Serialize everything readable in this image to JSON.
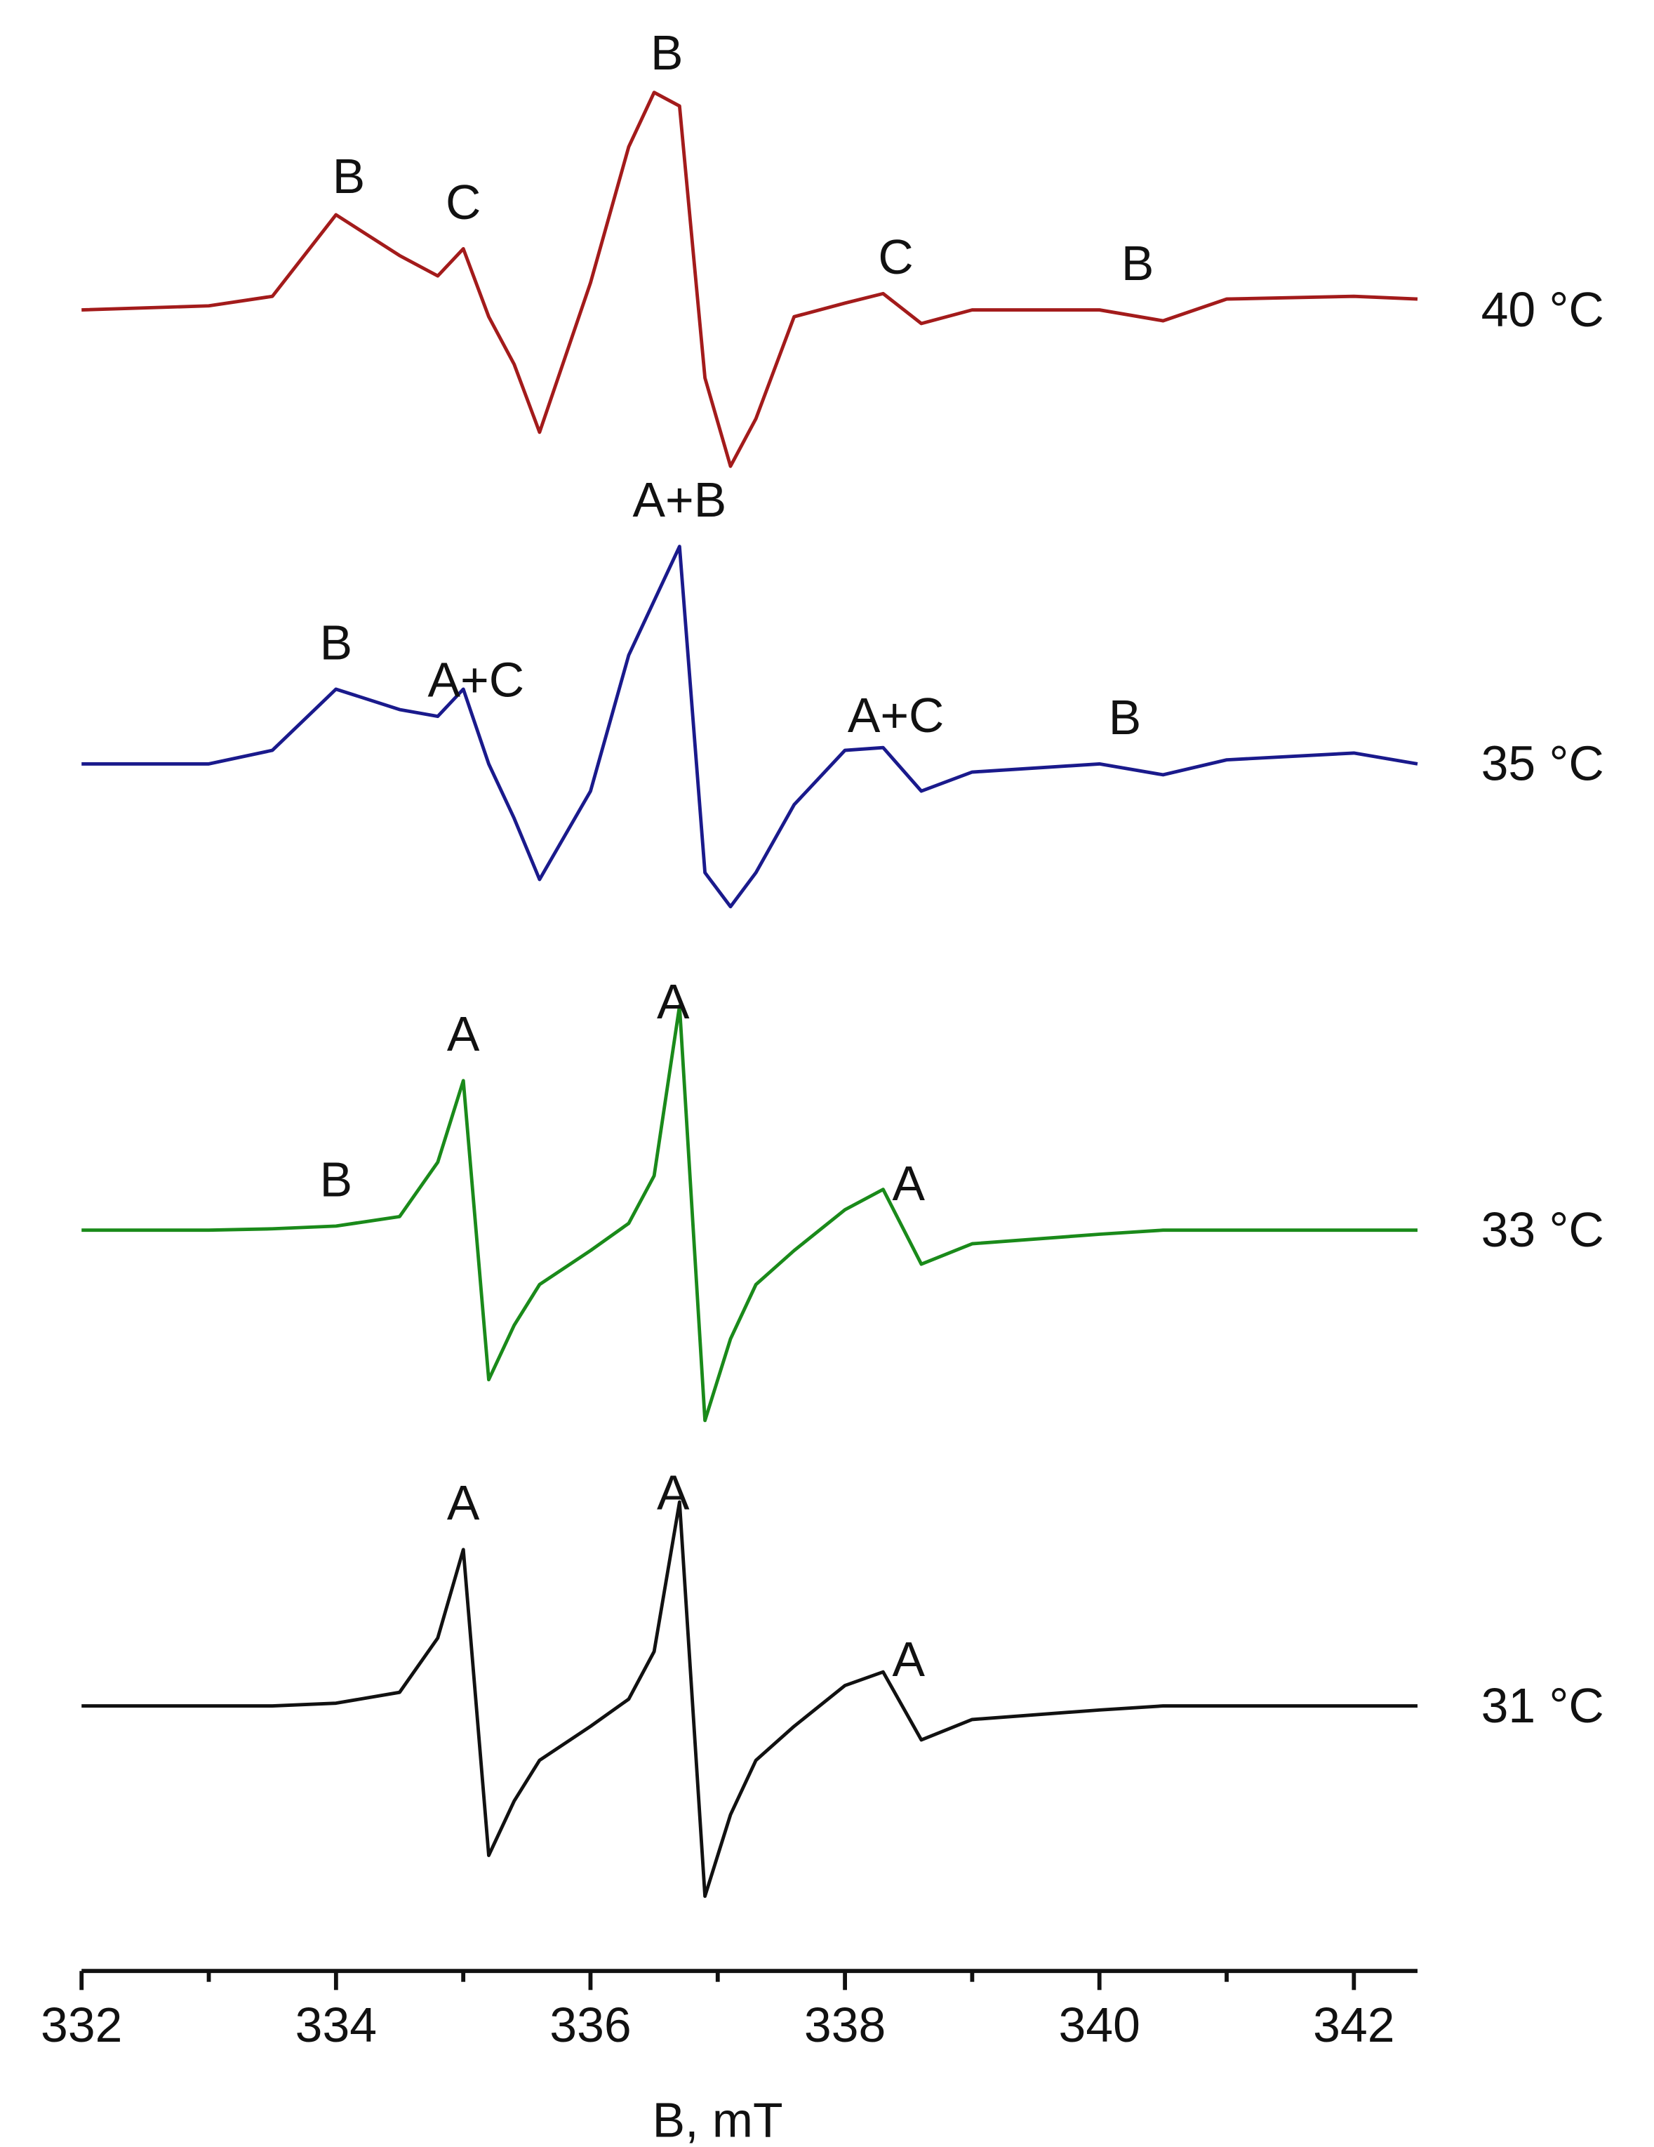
{
  "chart_data": {
    "type": "line",
    "x_label": "B, mT",
    "xlim": [
      332,
      342.5
    ],
    "xticks": [
      332,
      334,
      336,
      338,
      340,
      342
    ],
    "xminorticks": [
      333,
      335,
      337,
      339,
      341
    ],
    "x": [
      332,
      333,
      333.5,
      334,
      334.5,
      334.8,
      335,
      335.2,
      335.4,
      335.6,
      336,
      336.3,
      336.5,
      336.7,
      336.9,
      337.1,
      337.3,
      337.6,
      338,
      338.3,
      338.6,
      339,
      340,
      340.5,
      341,
      342,
      342.5
    ],
    "series": [
      {
        "name": "40 °C",
        "color": "#a31b1b",
        "values": [
          0,
          0.3,
          1,
          7,
          4,
          2.5,
          4.5,
          -0.5,
          -4,
          -9,
          2,
          12,
          16,
          15,
          -5,
          -11.5,
          -8,
          -0.5,
          0.5,
          1.2,
          -1,
          0,
          0,
          -0.8,
          0.8,
          1,
          0.8
        ]
      },
      {
        "name": "35 °C",
        "color": "#1a1a8c",
        "values": [
          0,
          0,
          1,
          5.5,
          4,
          3.5,
          5.5,
          0,
          -4,
          -8.5,
          -2,
          8,
          12,
          16,
          -8,
          -10.5,
          -8,
          -3,
          1,
          1.2,
          -2,
          -0.6,
          0,
          -0.8,
          0.3,
          0.8,
          0
        ]
      },
      {
        "name": "33 °C",
        "color": "#1a8a1a",
        "values": [
          0,
          0,
          0.1,
          0.3,
          1,
          5,
          11,
          -11,
          -7,
          -4,
          -1.5,
          0.5,
          4,
          16.5,
          -14,
          -8,
          -4,
          -1.5,
          1.5,
          3,
          -2.5,
          -1,
          -0.3,
          0,
          0,
          0,
          0
        ]
      },
      {
        "name": "31 °C",
        "color": "#111111",
        "values": [
          0,
          0,
          0,
          0.2,
          1,
          5,
          11.5,
          -11,
          -7,
          -4,
          -1.5,
          0.5,
          4,
          15,
          -14,
          -8,
          -4,
          -1.5,
          1.5,
          2.5,
          -2.5,
          -1,
          -0.3,
          0,
          0,
          0,
          0
        ]
      }
    ],
    "annotations": [
      {
        "text": "B",
        "x": 334.1,
        "series": 0
      },
      {
        "text": "C",
        "x": 335,
        "series": 0
      },
      {
        "text": "B",
        "x": 336.6,
        "series": 0
      },
      {
        "text": "C",
        "x": 338.4,
        "series": 0
      },
      {
        "text": "B",
        "x": 340.3,
        "series": 0
      },
      {
        "text": "B",
        "x": 334,
        "series": 1
      },
      {
        "text": "A+C",
        "x": 335.1,
        "series": 1
      },
      {
        "text": "A+B",
        "x": 336.7,
        "series": 1
      },
      {
        "text": "A+C",
        "x": 338.4,
        "series": 1
      },
      {
        "text": "B",
        "x": 340.2,
        "series": 1
      },
      {
        "text": "B",
        "x": 334,
        "series": 2
      },
      {
        "text": "A",
        "x": 335,
        "series": 2
      },
      {
        "text": "A",
        "x": 336.65,
        "series": 2
      },
      {
        "text": "A",
        "x": 338.5,
        "series": 2
      },
      {
        "text": "A",
        "x": 335,
        "series": 3
      },
      {
        "text": "A",
        "x": 336.65,
        "series": 3
      },
      {
        "text": "A",
        "x": 338.5,
        "series": 3
      }
    ]
  }
}
